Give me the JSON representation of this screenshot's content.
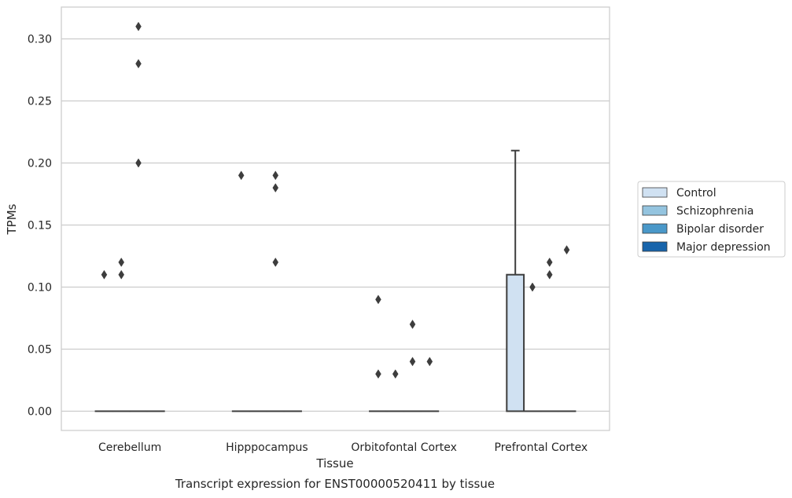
{
  "chart_data": {
    "type": "box",
    "xlabel": "Tissue",
    "ylabel": "TPMs",
    "caption": "Transcript expression for ENST00000520411 by tissue",
    "ylim": [
      -0.015,
      0.325
    ],
    "yticks": [
      "0.00",
      "0.05",
      "0.10",
      "0.15",
      "0.20",
      "0.25",
      "0.30"
    ],
    "grid": true,
    "legend_position": "right",
    "categories": [
      "Cerebellum",
      "Hipppocampus",
      "Orbitofontal Cortex",
      "Prefrontal Cortex"
    ],
    "series": [
      {
        "name": "Control",
        "color": "#d0e1f2"
      },
      {
        "name": "Schizophrenia",
        "color": "#94c4df"
      },
      {
        "name": "Bipolar disorder",
        "color": "#4a98c9"
      },
      {
        "name": "Major depression",
        "color": "#1764ab"
      }
    ],
    "boxes": [
      {
        "category": 0,
        "series": 0,
        "q1": 0,
        "median": 0,
        "q3": 0,
        "whisker_low": 0,
        "whisker_high": 0
      },
      {
        "category": 0,
        "series": 1,
        "q1": 0,
        "median": 0,
        "q3": 0,
        "whisker_low": 0,
        "whisker_high": 0
      },
      {
        "category": 0,
        "series": 2,
        "q1": 0,
        "median": 0,
        "q3": 0,
        "whisker_low": 0,
        "whisker_high": 0
      },
      {
        "category": 0,
        "series": 3,
        "q1": 0,
        "median": 0,
        "q3": 0,
        "whisker_low": 0,
        "whisker_high": 0
      },
      {
        "category": 1,
        "series": 0,
        "q1": 0,
        "median": 0,
        "q3": 0,
        "whisker_low": 0,
        "whisker_high": 0
      },
      {
        "category": 1,
        "series": 1,
        "q1": 0,
        "median": 0,
        "q3": 0,
        "whisker_low": 0,
        "whisker_high": 0
      },
      {
        "category": 1,
        "series": 2,
        "q1": 0,
        "median": 0,
        "q3": 0,
        "whisker_low": 0,
        "whisker_high": 0
      },
      {
        "category": 1,
        "series": 3,
        "q1": 0,
        "median": 0,
        "q3": 0,
        "whisker_low": 0,
        "whisker_high": 0
      },
      {
        "category": 2,
        "series": 0,
        "q1": 0,
        "median": 0,
        "q3": 0,
        "whisker_low": 0,
        "whisker_high": 0
      },
      {
        "category": 2,
        "series": 1,
        "q1": 0,
        "median": 0,
        "q3": 0,
        "whisker_low": 0,
        "whisker_high": 0
      },
      {
        "category": 2,
        "series": 2,
        "q1": 0,
        "median": 0,
        "q3": 0,
        "whisker_low": 0,
        "whisker_high": 0
      },
      {
        "category": 2,
        "series": 3,
        "q1": 0,
        "median": 0,
        "q3": 0,
        "whisker_low": 0,
        "whisker_high": 0
      },
      {
        "category": 3,
        "series": 0,
        "q1": 0,
        "median": 0,
        "q3": 0.11,
        "whisker_low": 0,
        "whisker_high": 0.21
      },
      {
        "category": 3,
        "series": 1,
        "q1": 0,
        "median": 0,
        "q3": 0,
        "whisker_low": 0,
        "whisker_high": 0
      },
      {
        "category": 3,
        "series": 2,
        "q1": 0,
        "median": 0,
        "q3": 0,
        "whisker_low": 0,
        "whisker_high": 0
      },
      {
        "category": 3,
        "series": 3,
        "q1": 0,
        "median": 0,
        "q3": 0,
        "whisker_low": 0,
        "whisker_high": 0
      }
    ],
    "outliers": [
      {
        "category": 0,
        "series": 0,
        "values": [
          0.11
        ]
      },
      {
        "category": 0,
        "series": 1,
        "values": [
          0.11,
          0.12
        ]
      },
      {
        "category": 0,
        "series": 2,
        "values": [
          0.2,
          0.28,
          0.31
        ]
      },
      {
        "category": 1,
        "series": 0,
        "values": [
          0.19
        ]
      },
      {
        "category": 1,
        "series": 2,
        "values": [
          0.12,
          0.18,
          0.19
        ]
      },
      {
        "category": 2,
        "series": 0,
        "values": [
          0.03,
          0.09
        ]
      },
      {
        "category": 2,
        "series": 1,
        "values": [
          0.03
        ]
      },
      {
        "category": 2,
        "series": 2,
        "values": [
          0.04,
          0.07
        ]
      },
      {
        "category": 2,
        "series": 3,
        "values": [
          0.04
        ]
      },
      {
        "category": 3,
        "series": 1,
        "values": [
          0.1
        ]
      },
      {
        "category": 3,
        "series": 2,
        "values": [
          0.11,
          0.12
        ]
      },
      {
        "category": 3,
        "series": 3,
        "values": [
          0.13
        ]
      }
    ]
  }
}
